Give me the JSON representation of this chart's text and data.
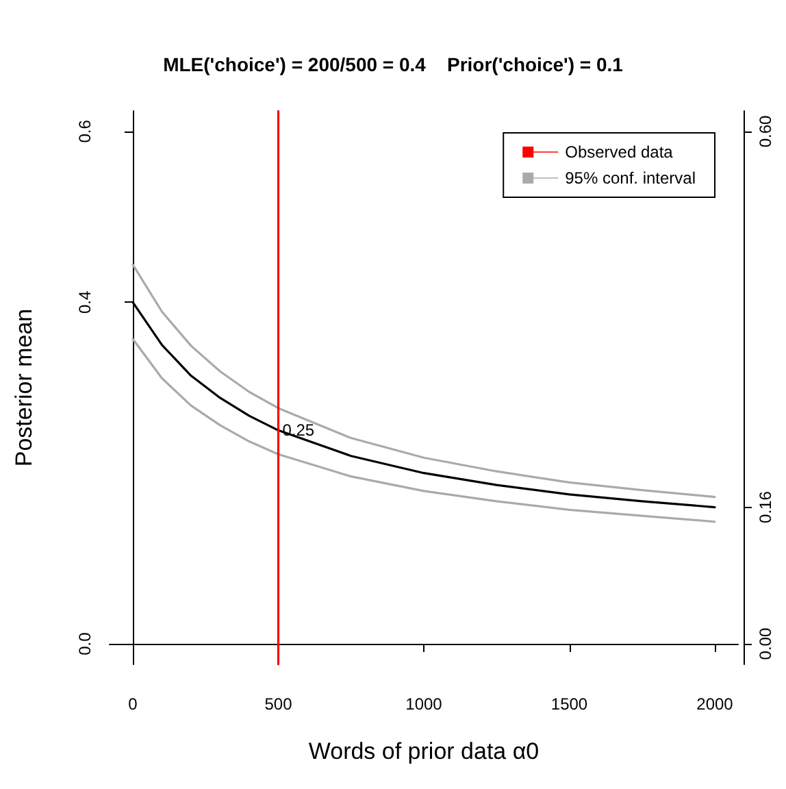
{
  "chart_data": {
    "type": "line",
    "title": "MLE('choice') = 200/500 = 0.4    Prior('choice') = 0.1",
    "xlabel": "Words of prior data α0",
    "ylabel": "Posterior mean",
    "x": [
      0,
      100,
      200,
      300,
      400,
      500,
      750,
      1000,
      1250,
      1500,
      1750,
      2000
    ],
    "series": [
      {
        "color": "#000000",
        "values": [
          0.4,
          0.35,
          0.314,
          0.288,
          0.267,
          0.25,
          0.22,
          0.2,
          0.186,
          0.175,
          0.167,
          0.16
        ],
        "value_labels": [
          null,
          null,
          null,
          null,
          null,
          "0.25",
          null,
          null,
          null,
          null,
          null,
          null
        ]
      },
      {
        "name": "95% conf. interval",
        "color": "#aaaaaa",
        "values": [
          0.444,
          0.389,
          0.349,
          0.319,
          0.295,
          0.276,
          0.241,
          0.218,
          0.202,
          0.189,
          0.18,
          0.172
        ]
      },
      {
        "color": "#aaaaaa",
        "values": [
          0.357,
          0.311,
          0.279,
          0.256,
          0.237,
          0.222,
          0.196,
          0.179,
          0.167,
          0.157,
          0.15,
          0.143
        ]
      },
      {
        "name": "Observed data",
        "color": "#ff0000",
        "x": [
          500,
          500
        ],
        "values": [
          -0.024,
          0.624
        ]
      }
    ],
    "xlim": [
      -80,
      2080
    ],
    "xticks": [
      0,
      500,
      1000,
      1500,
      2000
    ],
    "ylim": [
      -0.024,
      0.624
    ],
    "yticks": [
      {
        "value": 0,
        "label": "0.0"
      },
      {
        "value": 0.4,
        "label": "0.4"
      },
      {
        "value": 0.6,
        "label": "0.6"
      }
    ],
    "y2lim": [
      -0.024,
      0.624
    ],
    "y2ticks": [
      {
        "value": 0,
        "label": "0.00"
      },
      {
        "value": 0.16,
        "label": "0.16"
      },
      {
        "value": 0.6,
        "label": "0.60"
      }
    ],
    "legend": "top right",
    "grid": false,
    "marker": "none",
    "line_style": "solid"
  }
}
